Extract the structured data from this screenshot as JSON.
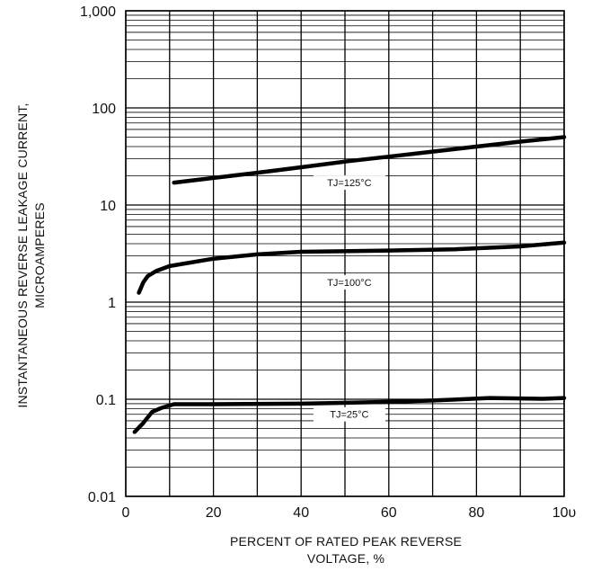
{
  "chart_data": {
    "type": "line",
    "title": "",
    "xlabel": "PERCENT OF RATED PEAK REVERSE VOLTAGE, %",
    "xlabel_lines": [
      "PERCENT OF RATED PEAK REVERSE",
      "VOLTAGE, %"
    ],
    "ylabel": "INSTANTANEOUS REVERSE LEAKAGE CURRENT, MICROAMPERES",
    "ylabel_lines": [
      "INSTANTANEOUS REVERSE LEAKAGE CURRENT,",
      "MICROAMPERES"
    ],
    "xlim": [
      0,
      100
    ],
    "ylim": [
      0.01,
      1000
    ],
    "yscale": "log",
    "grid": true,
    "x_ticks": [
      0,
      20,
      40,
      60,
      80,
      100
    ],
    "x_tick_labels": [
      "0",
      "20",
      "40",
      "60",
      "80",
      "10υ"
    ],
    "y_ticks": [
      0.01,
      0.1,
      1,
      10,
      100,
      1000
    ],
    "y_tick_labels": [
      "0.01",
      "0.1",
      "1",
      "10",
      "100",
      "1,000"
    ],
    "series": [
      {
        "name": "TJ=125°C",
        "x": [
          11,
          20,
          30,
          40,
          50,
          60,
          70,
          80,
          90,
          100
        ],
        "y": [
          17,
          19,
          21.5,
          24.5,
          28,
          31.5,
          35.5,
          40,
          45,
          50
        ]
      },
      {
        "name": "TJ=100°C",
        "x": [
          3,
          4,
          5,
          7,
          10,
          20,
          30,
          40,
          60,
          75,
          90,
          100
        ],
        "y": [
          1.25,
          1.6,
          1.85,
          2.1,
          2.35,
          2.8,
          3.1,
          3.3,
          3.4,
          3.5,
          3.75,
          4.1
        ]
      },
      {
        "name": "TJ=25°C",
        "x": [
          2,
          4,
          6,
          8,
          11,
          20,
          40,
          60,
          70,
          83,
          95,
          100
        ],
        "y": [
          0.046,
          0.057,
          0.074,
          0.081,
          0.089,
          0.089,
          0.09,
          0.094,
          0.097,
          0.103,
          0.101,
          0.103
        ]
      }
    ]
  },
  "curve_labels": [
    {
      "text": "TJ=125°C",
      "x": 51,
      "y": 17
    },
    {
      "text": "TJ=100°C",
      "x": 51,
      "y": 1.6
    },
    {
      "text": "TJ=25°C",
      "x": 51,
      "y": 0.07
    }
  ]
}
